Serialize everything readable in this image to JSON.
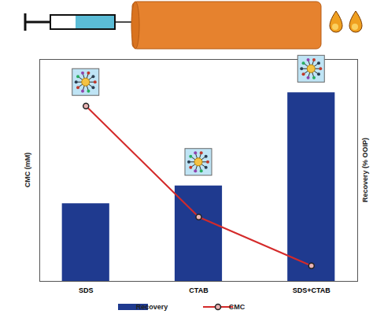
{
  "chart_data": {
    "type": "bar",
    "categories": [
      "SDS",
      "CTAB",
      "SDS+CTAB"
    ],
    "y_label": "CMC (mM)",
    "y2_label": "Recovery (% OOIP)",
    "ylim": [
      0,
      100
    ],
    "y2lim": [
      0,
      100
    ],
    "tick_labels": "x",
    "legend": "bottom",
    "series": [
      {
        "name": "Recovery",
        "type": "bar",
        "axis": "y2",
        "color": "#1f3a8f",
        "values": [
          35,
          43,
          85
        ]
      },
      {
        "name": "CMC",
        "type": "line",
        "color": "#d42a2a",
        "marker": "circle",
        "values": [
          79,
          29,
          7
        ]
      }
    ]
  }
}
